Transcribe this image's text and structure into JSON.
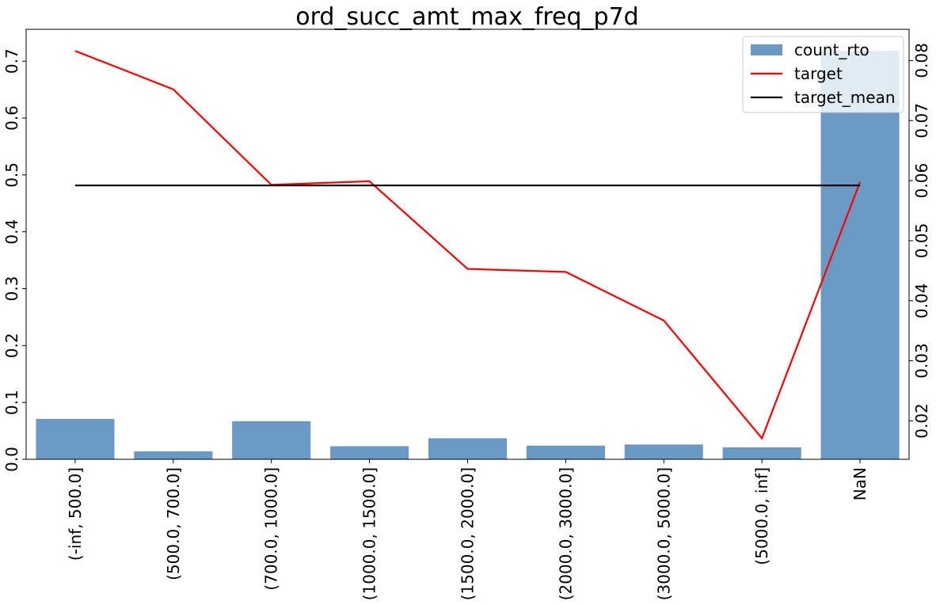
{
  "chart_data": {
    "type": "bar",
    "title": "ord_succ_amt_max_freq_p7d",
    "categories": [
      "(-inf, 500.0]",
      "(500.0, 700.0]",
      "(700.0, 1000.0]",
      "(1000.0, 1500.0]",
      "(1500.0, 2000.0]",
      "(2000.0, 3000.0]",
      "(3000.0, 5000.0]",
      "(5000.0, inf]",
      "NaN"
    ],
    "series": [
      {
        "name": "count_rto",
        "type": "bar",
        "axis": "left",
        "color": "#6a9ac4",
        "values": [
          0.071,
          0.014,
          0.067,
          0.023,
          0.037,
          0.024,
          0.026,
          0.021,
          0.718
        ]
      },
      {
        "name": "target",
        "type": "line",
        "axis": "right",
        "color": "#ff0000",
        "values": [
          0.0816,
          0.0752,
          0.0593,
          0.0599,
          0.0453,
          0.0448,
          0.0367,
          0.0171,
          0.0598
        ]
      },
      {
        "name": "target_mean",
        "type": "line",
        "axis": "right",
        "color": "#000000",
        "values": [
          0.0592,
          0.0592,
          0.0592,
          0.0592,
          0.0592,
          0.0592,
          0.0592,
          0.0592,
          0.0592
        ]
      }
    ],
    "y_left": {
      "ylim": [
        0.0,
        0.756
      ],
      "ticks": [
        0.0,
        0.1,
        0.2,
        0.3,
        0.4,
        0.5,
        0.6,
        0.7
      ],
      "tick_labels": [
        "0.0",
        "0.1",
        "0.2",
        "0.3",
        "0.4",
        "0.5",
        "0.6",
        "0.7"
      ]
    },
    "y_right": {
      "ylim": [
        0.0136,
        0.0852
      ],
      "ticks": [
        0.02,
        0.03,
        0.04,
        0.05,
        0.06,
        0.07,
        0.08
      ],
      "tick_labels": [
        "0.02",
        "0.03",
        "0.04",
        "0.05",
        "0.06",
        "0.07",
        "0.08"
      ]
    },
    "xlabel": "",
    "ylabel": "",
    "grid": false,
    "legend_position": "top-right"
  }
}
